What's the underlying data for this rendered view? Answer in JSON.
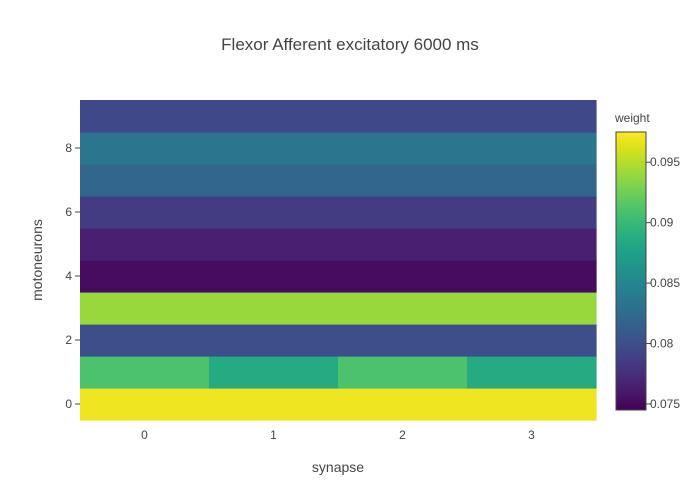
{
  "chart_data": {
    "type": "heatmap",
    "title": "Flexor Afferent excitatory 6000 ms",
    "xlabel": "synapse",
    "ylabel": "motoneurons",
    "x": [
      0,
      1,
      2,
      3
    ],
    "y": [
      0,
      1,
      2,
      3,
      4,
      5,
      6,
      7,
      8,
      9
    ],
    "x_ticks": [
      0,
      1,
      2,
      3
    ],
    "y_ticks": [
      0,
      2,
      4,
      6,
      8
    ],
    "z": [
      [
        0.097,
        0.097,
        0.097,
        0.097
      ],
      [
        0.091,
        0.0885,
        0.091,
        0.0885
      ],
      [
        0.08,
        0.08,
        0.08,
        0.08
      ],
      [
        0.094,
        0.094,
        0.094,
        0.094
      ],
      [
        0.0752,
        0.0752,
        0.0752,
        0.0752
      ],
      [
        0.0765,
        0.0765,
        0.0765,
        0.0765
      ],
      [
        0.0785,
        0.0785,
        0.0785,
        0.0785
      ],
      [
        0.082,
        0.082,
        0.082,
        0.082
      ],
      [
        0.0835,
        0.0835,
        0.0835,
        0.0835
      ],
      [
        0.0795,
        0.0795,
        0.0795,
        0.0795
      ]
    ],
    "zmin": 0.0745,
    "zmax": 0.0975,
    "colorscale": "Viridis",
    "colorbar": {
      "title": "weight",
      "ticks": [
        0.075,
        0.08,
        0.085,
        0.09,
        0.095
      ],
      "tick_labels": [
        "0.075",
        "0.08",
        "0.085",
        "0.09",
        "0.095"
      ]
    },
    "grid": false
  }
}
